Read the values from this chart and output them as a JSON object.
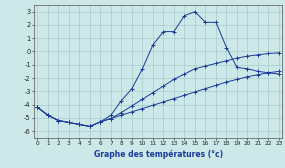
{
  "xlabel": "Graphe des températures (°c)",
  "bg_color": "#cce8e8",
  "grid_color": "#aacccc",
  "line_color": "#1a3a9a",
  "ylim": [
    -6.5,
    3.5
  ],
  "xlim": [
    -0.3,
    23.3
  ],
  "y_trend1": [
    -4.2,
    -4.8,
    -5.2,
    -5.35,
    -5.5,
    -5.65,
    -5.3,
    -5.05,
    -4.8,
    -4.55,
    -4.3,
    -4.05,
    -3.8,
    -3.55,
    -3.3,
    -3.05,
    -2.8,
    -2.55,
    -2.3,
    -2.1,
    -1.9,
    -1.75,
    -1.6,
    -1.5
  ],
  "y_trend2": [
    -4.2,
    -4.8,
    -5.2,
    -5.35,
    -5.5,
    -5.65,
    -5.3,
    -5.05,
    -4.6,
    -4.1,
    -3.6,
    -3.1,
    -2.6,
    -2.1,
    -1.7,
    -1.3,
    -1.1,
    -0.9,
    -0.7,
    -0.5,
    -0.35,
    -0.25,
    -0.15,
    -0.1
  ],
  "y_main": [
    -4.2,
    -4.8,
    -5.2,
    -5.35,
    -5.5,
    -5.65,
    -5.3,
    -4.8,
    -3.7,
    -2.8,
    -1.3,
    0.5,
    1.5,
    1.5,
    2.7,
    3.0,
    2.2,
    2.2,
    0.3,
    -1.2,
    -1.3,
    -1.5,
    -1.6,
    -1.7
  ]
}
